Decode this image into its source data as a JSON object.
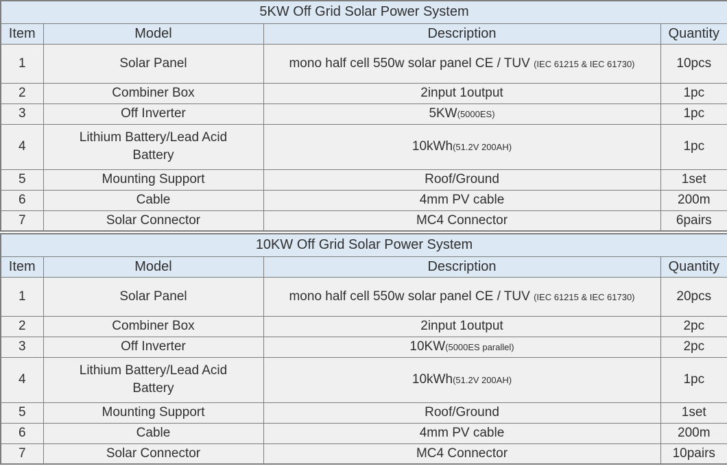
{
  "colors": {
    "header_bg": "#dce9f5",
    "row_bg": "#f0f0f0",
    "border": "#7d7d7d",
    "text": "#2f2f2f"
  },
  "columns": {
    "item": "Item",
    "model": "Model",
    "description": "Description",
    "quantity": "Quantity"
  },
  "tables": [
    {
      "title": "5KW Off Grid Solar Power System",
      "rows": [
        {
          "item": "1",
          "model": "Solar Panel",
          "desc_main": "mono half cell 550w solar panel CE / TUV ",
          "desc_small": "(IEC 61215 & IEC 61730)",
          "qty": "10pcs"
        },
        {
          "item": "2",
          "model": "Combiner Box",
          "desc_main": "2input 1output",
          "desc_small": "",
          "qty": "1pc"
        },
        {
          "item": "3",
          "model": "Off Inverter",
          "desc_main": "5KW",
          "desc_small": "(5000ES)",
          "qty": "1pc"
        },
        {
          "item": "4",
          "model": "Lithium Battery/Lead Acid Battery",
          "desc_main": "10kWh",
          "desc_small": "(51.2V 200AH)",
          "qty": "1pc"
        },
        {
          "item": "5",
          "model": "Mounting Support",
          "desc_main": "Roof/Ground",
          "desc_small": "",
          "qty": "1set"
        },
        {
          "item": "6",
          "model": "Cable",
          "desc_main": "4mm PV cable",
          "desc_small": "",
          "qty": "200m"
        },
        {
          "item": "7",
          "model": "Solar Connector",
          "desc_main": "MC4 Connector",
          "desc_small": "",
          "qty": "6pairs"
        }
      ]
    },
    {
      "title": "10KW Off Grid Solar Power System",
      "rows": [
        {
          "item": "1",
          "model": "Solar Panel",
          "desc_main": "mono half cell 550w solar panel CE / TUV ",
          "desc_small": "(IEC 61215 & IEC 61730)",
          "qty": "20pcs"
        },
        {
          "item": "2",
          "model": "Combiner Box",
          "desc_main": "2input 1output",
          "desc_small": "",
          "qty": "2pc"
        },
        {
          "item": "3",
          "model": "Off Inverter",
          "desc_main": "10KW",
          "desc_small": "(5000ES parallel)",
          "qty": "2pc"
        },
        {
          "item": "4",
          "model": "Lithium Battery/Lead Acid Battery",
          "desc_main": "10kWh",
          "desc_small": "(51.2V 200AH)",
          "qty": "1pc"
        },
        {
          "item": "5",
          "model": "Mounting Support",
          "desc_main": "Roof/Ground",
          "desc_small": "",
          "qty": "1set"
        },
        {
          "item": "6",
          "model": "Cable",
          "desc_main": "4mm PV cable",
          "desc_small": "",
          "qty": "200m"
        },
        {
          "item": "7",
          "model": "Solar Connector",
          "desc_main": "MC4 Connector",
          "desc_small": "",
          "qty": "10pairs"
        }
      ]
    }
  ]
}
